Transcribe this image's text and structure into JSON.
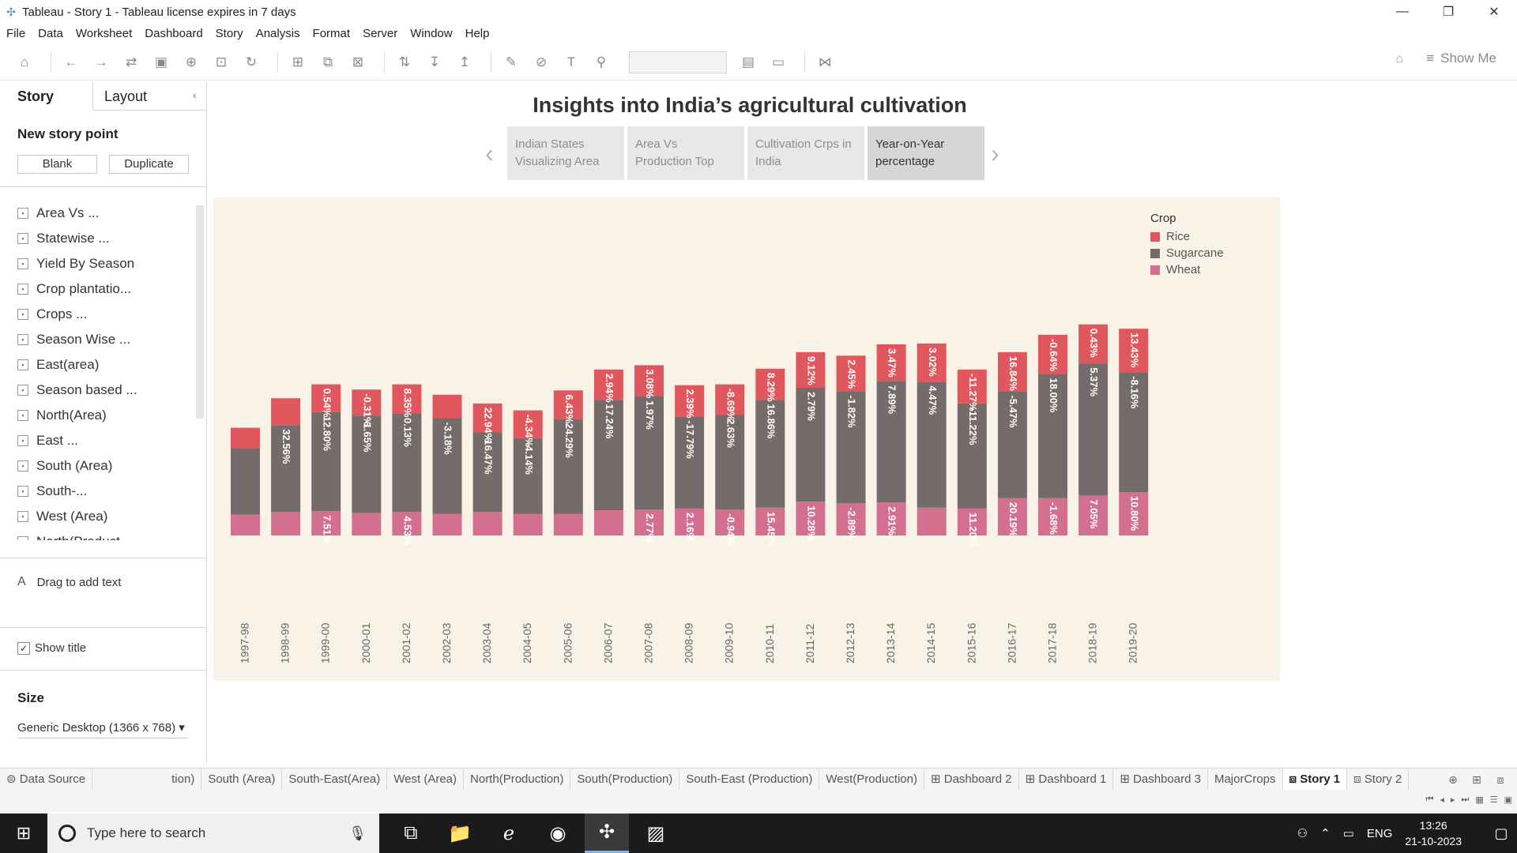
{
  "window": {
    "title": "Tableau - Story 1 - Tableau license expires in 7 days",
    "controls": [
      "—",
      "❐",
      "✕"
    ]
  },
  "menu": [
    "File",
    "Data",
    "Worksheet",
    "Dashboard",
    "Story",
    "Analysis",
    "Format",
    "Server",
    "Window",
    "Help"
  ],
  "toolbar": {
    "show_me": "Show Me"
  },
  "left_panel": {
    "tab_story": "Story",
    "tab_layout": "Layout",
    "new_story_point": "New story point",
    "blank_button": "Blank",
    "duplicate_button": "Duplicate",
    "sheets": [
      "Area Vs ...",
      "Statewise ...",
      "Yield By Season",
      "Crop plantatio...",
      "Crops ...",
      "Season Wise ...",
      "East(area)",
      "Season based ...",
      "North(Area)",
      "East ...",
      "South (Area)",
      "South-...",
      "West (Area)",
      "North(Product..."
    ],
    "drag_text": "Drag to add text",
    "show_title": "Show title",
    "size_label": "Size",
    "size_value": "Generic Desktop (1366 x 768)"
  },
  "story": {
    "title": "Insights into India’s agricultural cultivation",
    "points": [
      {
        "line1": "Indian States",
        "line2": "Visualizing Area"
      },
      {
        "line1": "Area Vs",
        "line2": "Production Top"
      },
      {
        "line1": "Cultivation Crps in",
        "line2": "India"
      },
      {
        "line1": "Year-on-Year",
        "line2": "percentage"
      }
    ],
    "active_point": 3
  },
  "chart_data": {
    "type": "bar",
    "stacked": true,
    "categories": [
      "1997-98",
      "1998-99",
      "1999-00",
      "2000-01",
      "2001-02",
      "2002-03",
      "2003-04",
      "2004-05",
      "2005-06",
      "2006-07",
      "2007-08",
      "2008-09",
      "2009-10",
      "2010-11",
      "2011-12",
      "2012-13",
      "2013-14",
      "2014-15",
      "2015-16",
      "2016-17",
      "2017-18",
      "2018-19",
      "2019-20"
    ],
    "legend_title": "Crop",
    "legend_position": "top-right",
    "series": [
      {
        "name": "Wheat",
        "color": "#d4708f",
        "values": [
          24,
          27,
          28,
          26,
          27,
          25,
          27,
          25,
          25,
          29,
          30,
          31,
          30,
          32,
          39,
          37,
          38,
          32,
          31,
          43,
          43,
          46,
          50
        ],
        "labels": [
          "",
          "",
          "7.51%",
          "",
          "4.53%",
          "",
          "",
          "",
          "",
          "",
          "2.77%",
          "2.16%",
          "-0.94%",
          "15.45%",
          "10.28%",
          "-2.89%",
          "2.91%",
          "",
          "11.20%",
          "20.19%",
          "-1.68%",
          "7.05%",
          "10.80%"
        ]
      },
      {
        "name": "Sugarcane",
        "color": "#746b6a",
        "values": [
          76,
          100,
          114,
          112,
          113,
          110,
          92,
          87,
          109,
          127,
          130,
          106,
          109,
          124,
          131,
          129,
          140,
          145,
          121,
          123,
          143,
          152,
          138
        ],
        "labels": [
          "",
          "32.56%",
          "12.80%",
          "-1.65%",
          "0.13%",
          "-3.18%",
          "-16.47%",
          "-4.14%",
          "24.29%",
          "17.24%",
          "1.97%",
          "-17.79%",
          "2.63%",
          "16.86%",
          "2.79%",
          "-1.82%",
          "7.89%",
          "4.47%",
          "-11.22%",
          "-5.47%",
          "18.00%",
          "5.37%",
          "-8.16%"
        ]
      },
      {
        "name": "Rice",
        "color": "#e0575d",
        "values": [
          24,
          31,
          32,
          30,
          34,
          27,
          33,
          32,
          33,
          35,
          36,
          36,
          35,
          36,
          41,
          41,
          42,
          44,
          39,
          45,
          45,
          45,
          50
        ],
        "labels": [
          "",
          "",
          "0.54%",
          "-0.31%",
          "8.35%",
          "",
          "22.94%",
          "-4.34%",
          "6.43%",
          "2.94%",
          "3.08%",
          "2.39%",
          "-8.69%",
          "8.29%",
          "9.12%",
          "2.45%",
          "3.47%",
          "3.02%",
          "-11.27%",
          "16.84%",
          "-0.64%",
          "0.43%",
          "13.43%"
        ]
      }
    ]
  },
  "bottom_tabs": [
    "Data Source",
    "tion)",
    "South (Area)",
    "South-East(Area)",
    "West (Area)",
    "North(Production)",
    "South(Production)",
    "South-East (Production)",
    "West(Production)",
    "Dashboard 2",
    "Dashboard 1",
    "Dashboard 3",
    "MajorCrops",
    "Story 1",
    "Story 2"
  ],
  "active_bottom_tab": "Story 1",
  "taskbar": {
    "search_placeholder": "Type here to search",
    "language": "ENG",
    "time": "13:26",
    "date": "21-10-2023"
  }
}
